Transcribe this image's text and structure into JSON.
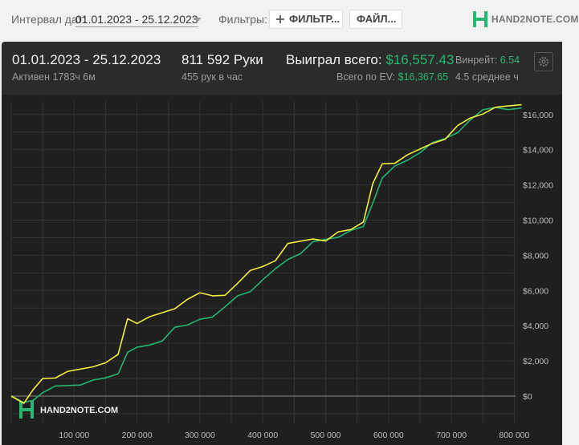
{
  "toolbar": {
    "date_label": "Интервал дат:",
    "date_range": "01.01.2023 - 25.12.2023",
    "filters_label": "Фильтры:",
    "filter_button": "ФИЛЬТР...",
    "files_button": "ФАЙЛ...",
    "logo_text": "HAND2NOTE.COM"
  },
  "summary": {
    "period": "01.01.2023 - 25.12.2023",
    "active": "Активен 1783ч 6м",
    "hands": "811 592 Руки",
    "hands_per_hour": "455 рук в час",
    "won_label": "Выиграл всего:",
    "won_value": "$16,557.43",
    "ev_label": "Всего по EV:",
    "ev_value": "$16,367.65",
    "winrate_label": "Винрейт:",
    "winrate_value": "6.54",
    "avg_text": "4.5 среднее ч"
  },
  "colors": {
    "won_line": "#f2ef3a",
    "ev_line": "#22b573",
    "accent": "#2bb673",
    "panel_bg": "#2b2b2b",
    "plot_bg": "#1f1f1f"
  },
  "watermark": "HAND2NOTE.COM",
  "chart_data": {
    "type": "line",
    "x_ticks": [
      "100 000",
      "200 000",
      "300 000",
      "400 000",
      "500 000",
      "600 000",
      "700 000",
      "800 000"
    ],
    "y_ticks": [
      "$0",
      "$2,000",
      "$4,000",
      "$6,000",
      "$8,000",
      "$10,000",
      "$12,000",
      "$14,000",
      "$16,000"
    ],
    "xlim": [
      0,
      811592
    ],
    "ylim": [
      -1000,
      16800
    ],
    "grid": true,
    "series": [
      {
        "color": "#f2ef3a",
        "x": [
          0,
          20000,
          35000,
          50000,
          70000,
          90000,
          110000,
          130000,
          150000,
          170000,
          185000,
          200000,
          220000,
          240000,
          260000,
          280000,
          300000,
          320000,
          340000,
          360000,
          380000,
          400000,
          420000,
          440000,
          460000,
          480000,
          500000,
          520000,
          540000,
          560000,
          575000,
          590000,
          610000,
          630000,
          650000,
          670000,
          690000,
          710000,
          730000,
          750000,
          770000,
          790000,
          811592
        ],
        "values": [
          0,
          -300,
          300,
          1000,
          1100,
          1300,
          1500,
          1700,
          2000,
          2300,
          4400,
          4200,
          4400,
          4700,
          5000,
          5600,
          5800,
          5700,
          5800,
          6300,
          7100,
          7400,
          7800,
          8600,
          8800,
          9000,
          8700,
          9300,
          9500,
          10000,
          12000,
          13200,
          13300,
          13600,
          14000,
          14400,
          14700,
          15300,
          15800,
          16100,
          16300,
          16450,
          16557
        ]
      },
      {
        "color": "#22b573",
        "x": [
          0,
          20000,
          35000,
          50000,
          70000,
          90000,
          110000,
          130000,
          150000,
          170000,
          185000,
          200000,
          220000,
          240000,
          260000,
          280000,
          300000,
          320000,
          340000,
          360000,
          380000,
          400000,
          420000,
          440000,
          460000,
          480000,
          500000,
          520000,
          540000,
          560000,
          575000,
          590000,
          610000,
          630000,
          650000,
          670000,
          690000,
          710000,
          730000,
          750000,
          770000,
          790000,
          811592
        ],
        "values": [
          0,
          -400,
          -200,
          300,
          500,
          600,
          700,
          800,
          1000,
          1300,
          2600,
          2700,
          2900,
          3200,
          3800,
          4000,
          4400,
          4600,
          5000,
          5700,
          6000,
          6500,
          7200,
          7800,
          8200,
          8700,
          8900,
          9100,
          9300,
          9600,
          11000,
          12500,
          13000,
          13400,
          13900,
          14300,
          14600,
          15000,
          15800,
          16200,
          16400,
          16350,
          16367
        ]
      }
    ]
  }
}
